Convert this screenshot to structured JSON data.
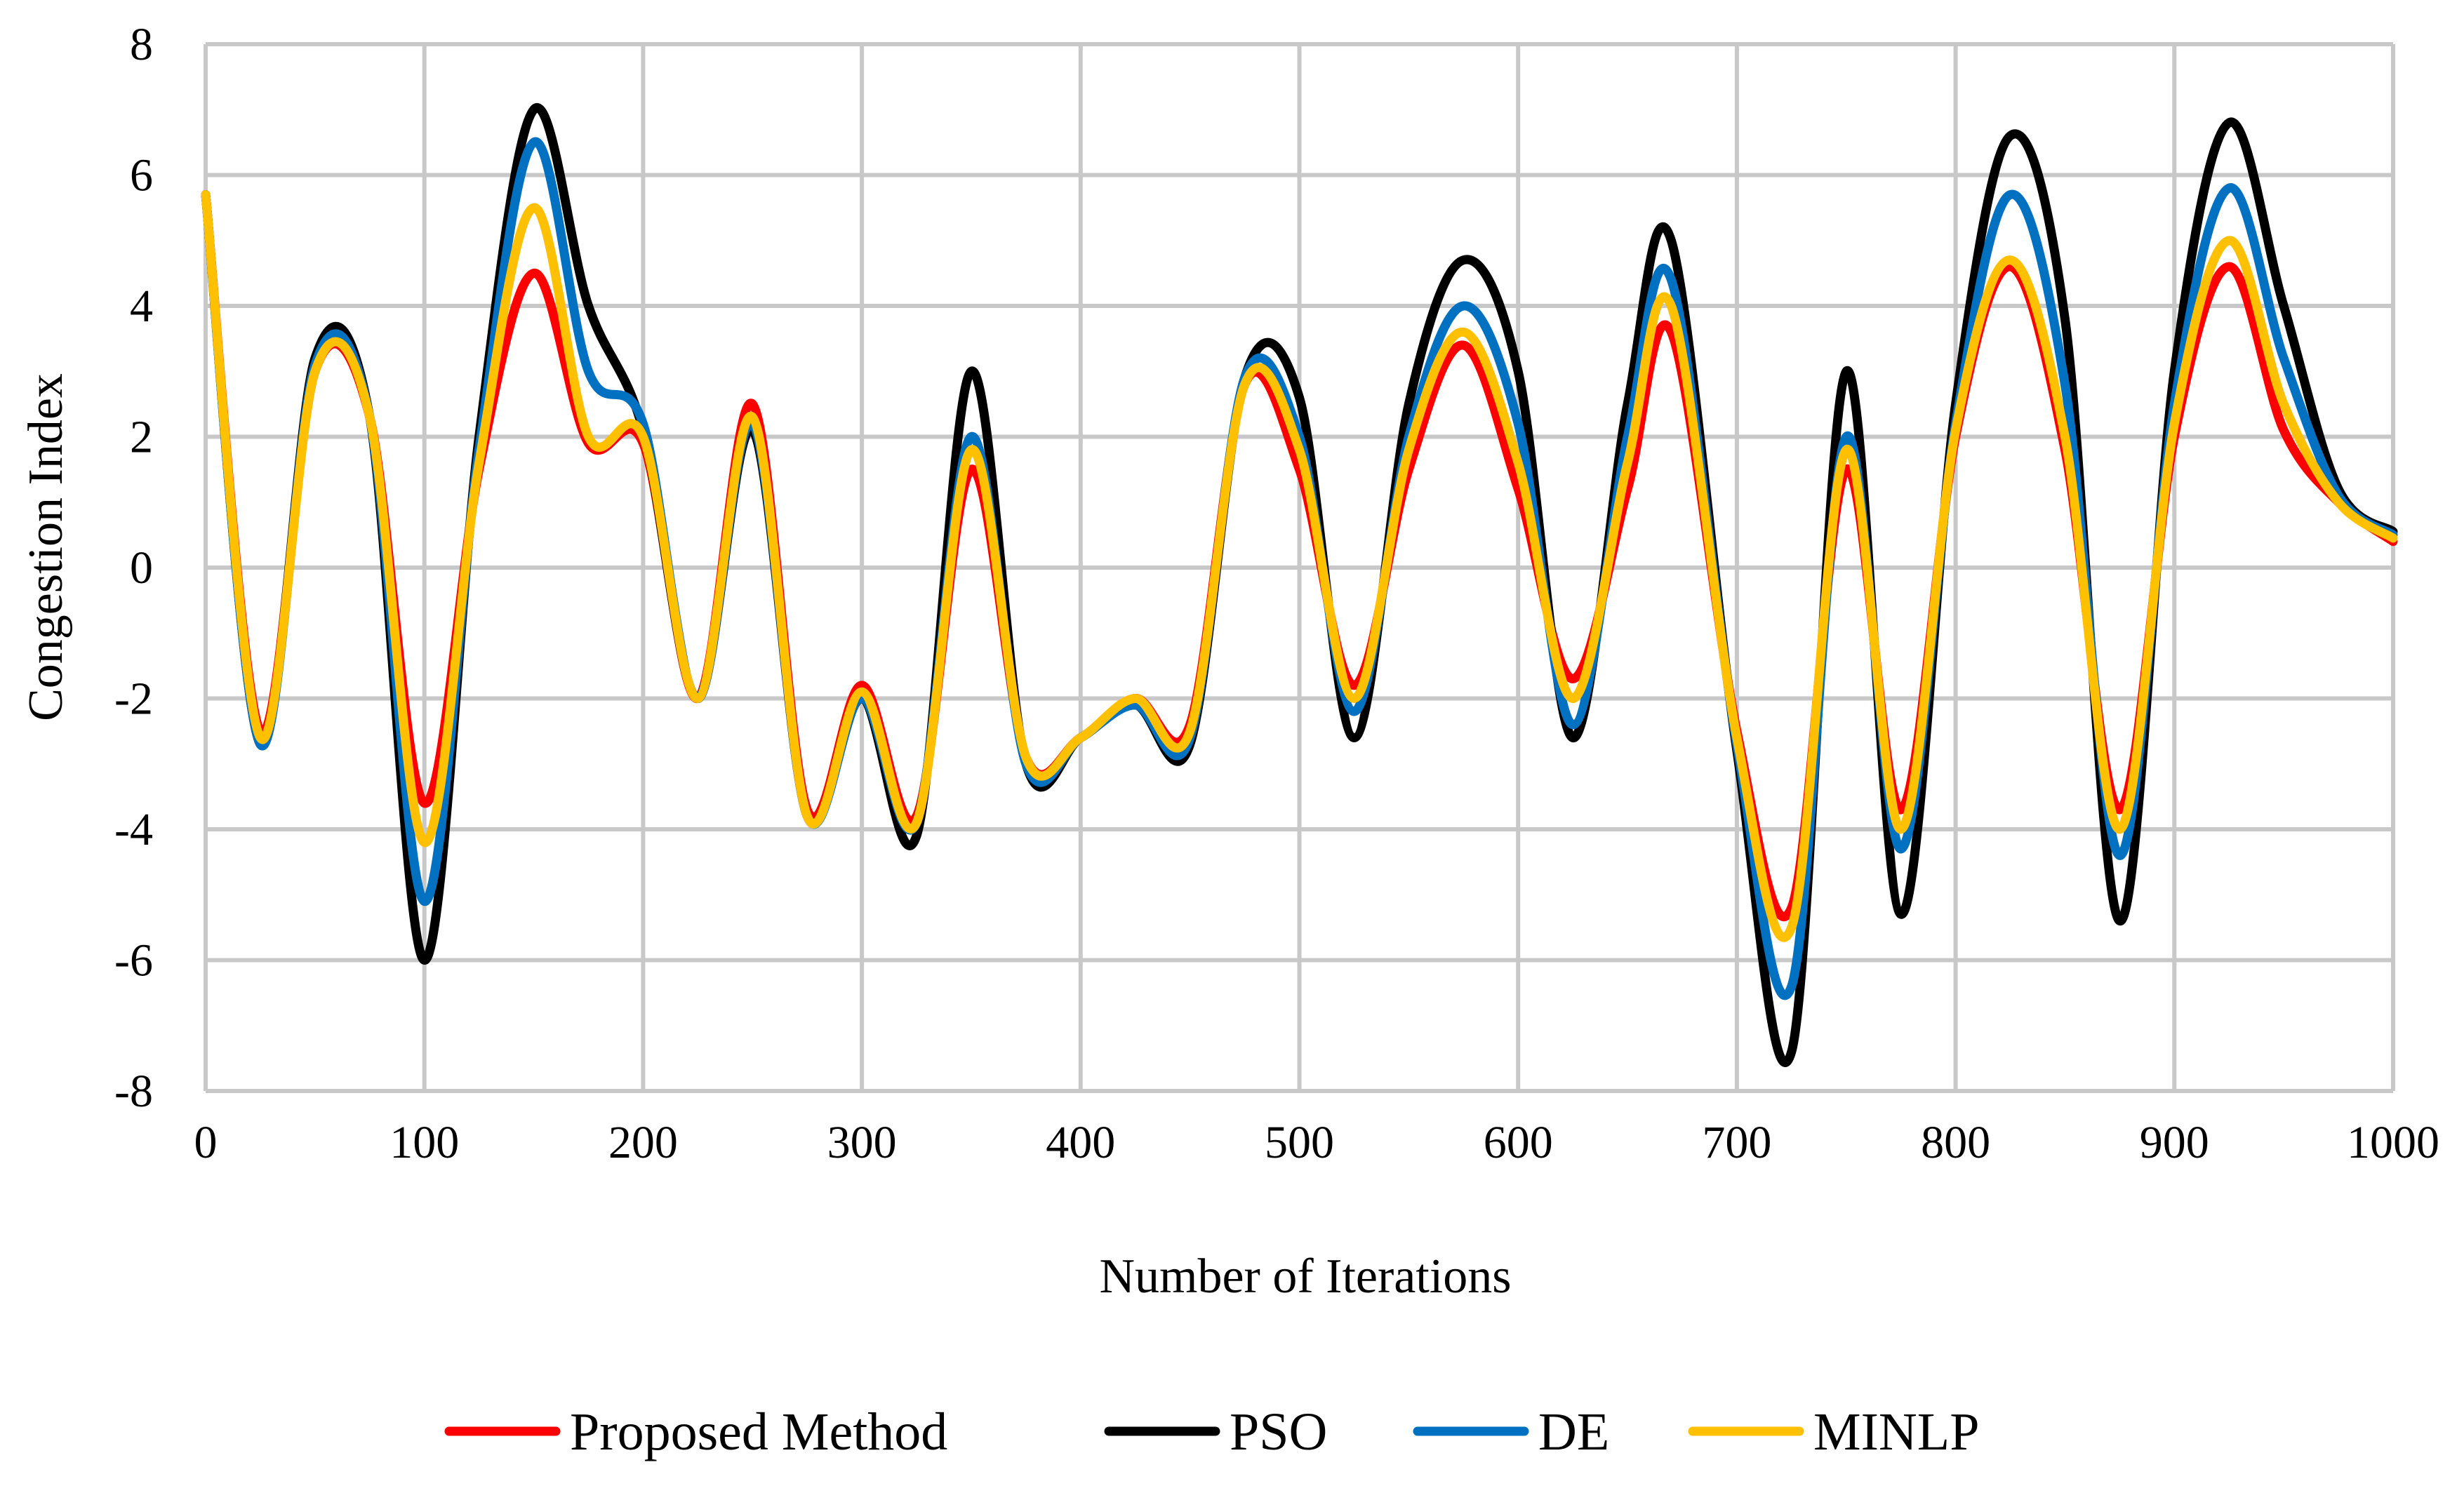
{
  "chart_data": {
    "type": "line",
    "title": "",
    "xlabel": "Number of Iterations",
    "ylabel": "Congestion Index",
    "xlim": [
      0,
      1000
    ],
    "ylim": [
      -8,
      8
    ],
    "x_ticks": [
      0,
      100,
      200,
      300,
      400,
      500,
      600,
      700,
      800,
      900,
      1000
    ],
    "y_ticks": [
      -8,
      -6,
      -4,
      -2,
      0,
      2,
      4,
      6,
      8
    ],
    "grid": true,
    "legend_position": "bottom",
    "series": [
      {
        "name": "Proposed Method",
        "color": "#ff0000",
        "points": [
          [
            0,
            5.7
          ],
          [
            25,
            -2.5
          ],
          [
            50,
            3.0
          ],
          [
            75,
            2.3
          ],
          [
            100,
            -3.6
          ],
          [
            125,
            1.5
          ],
          [
            150,
            4.5
          ],
          [
            175,
            1.9
          ],
          [
            200,
            1.9
          ],
          [
            225,
            -2.0
          ],
          [
            250,
            2.5
          ],
          [
            275,
            -3.7
          ],
          [
            300,
            -1.8
          ],
          [
            325,
            -3.8
          ],
          [
            350,
            1.5
          ],
          [
            375,
            -2.9
          ],
          [
            400,
            -2.6
          ],
          [
            425,
            -2.0
          ],
          [
            450,
            -2.4
          ],
          [
            475,
            2.8
          ],
          [
            500,
            1.5
          ],
          [
            525,
            -1.8
          ],
          [
            550,
            1.5
          ],
          [
            575,
            3.4
          ],
          [
            600,
            1.2
          ],
          [
            625,
            -1.7
          ],
          [
            650,
            1.2
          ],
          [
            670,
            3.6
          ],
          [
            700,
            -2.5
          ],
          [
            725,
            -5.2
          ],
          [
            750,
            1.5
          ],
          [
            775,
            -3.7
          ],
          [
            800,
            2.0
          ],
          [
            825,
            4.6
          ],
          [
            850,
            1.8
          ],
          [
            875,
            -3.7
          ],
          [
            900,
            2.0
          ],
          [
            925,
            4.6
          ],
          [
            950,
            2.1
          ],
          [
            975,
            1.0
          ],
          [
            1000,
            0.4
          ]
        ]
      },
      {
        "name": "PSO",
        "color": "#000000",
        "points": [
          [
            0,
            5.7
          ],
          [
            25,
            -2.7
          ],
          [
            50,
            3.2
          ],
          [
            75,
            2.3
          ],
          [
            100,
            -6.0
          ],
          [
            125,
            2.0
          ],
          [
            150,
            7.0
          ],
          [
            175,
            4.0
          ],
          [
            200,
            2.1
          ],
          [
            225,
            -2.0
          ],
          [
            250,
            2.1
          ],
          [
            275,
            -3.8
          ],
          [
            300,
            -2.0
          ],
          [
            325,
            -4.1
          ],
          [
            350,
            3.0
          ],
          [
            375,
            -3.0
          ],
          [
            400,
            -2.6
          ],
          [
            425,
            -2.1
          ],
          [
            450,
            -2.7
          ],
          [
            475,
            2.9
          ],
          [
            500,
            2.6
          ],
          [
            525,
            -2.6
          ],
          [
            550,
            2.5
          ],
          [
            575,
            4.7
          ],
          [
            600,
            3.0
          ],
          [
            625,
            -2.6
          ],
          [
            650,
            2.5
          ],
          [
            670,
            5.0
          ],
          [
            700,
            -2.8
          ],
          [
            725,
            -7.4
          ],
          [
            750,
            3.0
          ],
          [
            775,
            -5.3
          ],
          [
            800,
            2.5
          ],
          [
            825,
            6.6
          ],
          [
            850,
            3.8
          ],
          [
            875,
            -5.4
          ],
          [
            900,
            3.0
          ],
          [
            925,
            6.8
          ],
          [
            950,
            4.0
          ],
          [
            975,
            1.2
          ],
          [
            1000,
            0.55
          ]
        ]
      },
      {
        "name": "DE",
        "color": "#0070c0",
        "points": [
          [
            0,
            5.7
          ],
          [
            25,
            -2.7
          ],
          [
            50,
            3.1
          ],
          [
            75,
            2.3
          ],
          [
            100,
            -5.1
          ],
          [
            125,
            1.8
          ],
          [
            150,
            6.5
          ],
          [
            175,
            3.0
          ],
          [
            200,
            2.2
          ],
          [
            225,
            -2.0
          ],
          [
            250,
            2.2
          ],
          [
            275,
            -3.8
          ],
          [
            300,
            -2.0
          ],
          [
            325,
            -3.9
          ],
          [
            350,
            2.0
          ],
          [
            375,
            -3.0
          ],
          [
            400,
            -2.6
          ],
          [
            425,
            -2.1
          ],
          [
            450,
            -2.6
          ],
          [
            475,
            2.9
          ],
          [
            500,
            2.0
          ],
          [
            525,
            -2.2
          ],
          [
            550,
            2.0
          ],
          [
            575,
            4.0
          ],
          [
            600,
            2.2
          ],
          [
            625,
            -2.4
          ],
          [
            650,
            2.0
          ],
          [
            670,
            4.4
          ],
          [
            700,
            -2.7
          ],
          [
            725,
            -6.4
          ],
          [
            750,
            2.0
          ],
          [
            775,
            -4.3
          ],
          [
            800,
            2.2
          ],
          [
            825,
            5.7
          ],
          [
            850,
            2.8
          ],
          [
            875,
            -4.4
          ],
          [
            900,
            2.5
          ],
          [
            925,
            5.8
          ],
          [
            950,
            3.2
          ],
          [
            975,
            1.1
          ],
          [
            1000,
            0.5
          ]
        ]
      },
      {
        "name": "MINLP",
        "color": "#ffc000",
        "points": [
          [
            0,
            5.7
          ],
          [
            25,
            -2.6
          ],
          [
            50,
            3.0
          ],
          [
            75,
            2.3
          ],
          [
            100,
            -4.2
          ],
          [
            125,
            1.6
          ],
          [
            150,
            5.5
          ],
          [
            175,
            2.0
          ],
          [
            200,
            2.0
          ],
          [
            225,
            -2.0
          ],
          [
            250,
            2.3
          ],
          [
            275,
            -3.8
          ],
          [
            300,
            -1.9
          ],
          [
            325,
            -3.9
          ],
          [
            350,
            1.8
          ],
          [
            375,
            -2.9
          ],
          [
            400,
            -2.6
          ],
          [
            425,
            -2.0
          ],
          [
            450,
            -2.5
          ],
          [
            475,
            2.8
          ],
          [
            500,
            1.8
          ],
          [
            525,
            -2.0
          ],
          [
            550,
            1.8
          ],
          [
            575,
            3.6
          ],
          [
            600,
            1.6
          ],
          [
            625,
            -2.0
          ],
          [
            650,
            1.6
          ],
          [
            670,
            4.0
          ],
          [
            700,
            -2.6
          ],
          [
            725,
            -5.5
          ],
          [
            750,
            1.8
          ],
          [
            775,
            -4.0
          ],
          [
            800,
            2.1
          ],
          [
            825,
            4.7
          ],
          [
            850,
            2.0
          ],
          [
            875,
            -4.0
          ],
          [
            900,
            2.2
          ],
          [
            925,
            5.0
          ],
          [
            950,
            2.5
          ],
          [
            975,
            1.0
          ],
          [
            1000,
            0.45
          ]
        ]
      }
    ]
  }
}
